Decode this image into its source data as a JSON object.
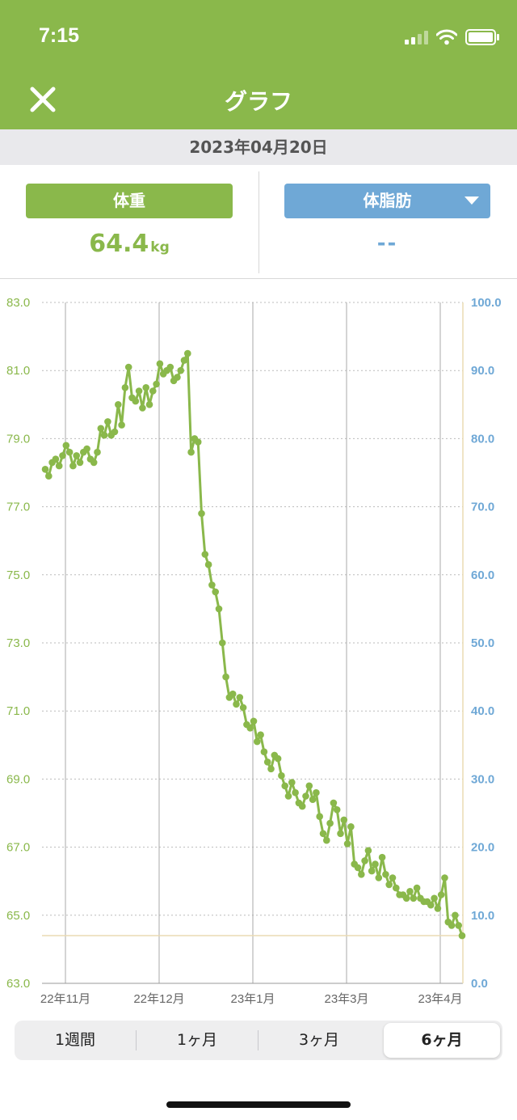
{
  "status_bar": {
    "time": "7:15"
  },
  "nav": {
    "title": "グラフ",
    "close_icon": "close-icon"
  },
  "date": "2023年04月20日",
  "tiles": {
    "weight": {
      "label": "体重",
      "value": "64.4",
      "unit": "kg"
    },
    "body_fat": {
      "label": "体脂肪",
      "value": "--",
      "dropdown_icon": "chevron-down-icon"
    }
  },
  "colors": {
    "accent": "#8ab84b",
    "secondary": "#6fa8d6",
    "target_line": "#eadbb3"
  },
  "chart_data": {
    "type": "line",
    "y_left": {
      "ylim": [
        63.0,
        83.0
      ],
      "ticks": [
        "63.0",
        "65.0",
        "67.0",
        "69.0",
        "71.0",
        "73.0",
        "75.0",
        "77.0",
        "79.0",
        "81.0",
        "83.0"
      ]
    },
    "y_right": {
      "ylim": [
        0.0,
        100.0
      ],
      "ticks": [
        "0.0",
        "10.0",
        "20.0",
        "30.0",
        "40.0",
        "50.0",
        "60.0",
        "70.0",
        "80.0",
        "90.0",
        "100.0"
      ]
    },
    "x_tick_labels": [
      "22年11月",
      "22年12月",
      "23年1月",
      "23年3月",
      "23年4月"
    ],
    "reference_line": 64.4,
    "grid": true,
    "series": [
      {
        "values": [
          78.1,
          77.9,
          78.3,
          78.4,
          78.2,
          78.5,
          78.8,
          78.6,
          78.2,
          78.5,
          78.3,
          78.6,
          78.7,
          78.4,
          78.3,
          78.6,
          79.3,
          79.1,
          79.5,
          79.1,
          79.2,
          80.0,
          79.4,
          80.5,
          81.1,
          80.2,
          80.1,
          80.4,
          79.9,
          80.5,
          80.0,
          80.4,
          80.6,
          81.2,
          80.9,
          81.0,
          81.1,
          80.7,
          80.8,
          81.0,
          81.3,
          81.5,
          78.6,
          79.0,
          78.9,
          76.8,
          75.6,
          75.3,
          74.7,
          74.5,
          74.0,
          73.0,
          72.0,
          71.4,
          71.5,
          71.2,
          71.4,
          71.1,
          70.6,
          70.5,
          70.7,
          70.1,
          70.3,
          69.8,
          69.5,
          69.3,
          69.7,
          69.6,
          69.1,
          68.8,
          68.5,
          68.9,
          68.6,
          68.3,
          68.2,
          68.5,
          68.8,
          68.4,
          68.6,
          67.9,
          67.4,
          67.2,
          67.7,
          68.3,
          68.1,
          67.4,
          67.8,
          67.1,
          67.6,
          66.5,
          66.4,
          66.2,
          66.6,
          66.9,
          66.3,
          66.5,
          66.1,
          66.7,
          66.2,
          65.9,
          66.1,
          65.8,
          65.6,
          65.6,
          65.5,
          65.7,
          65.5,
          65.8,
          65.5,
          65.4,
          65.4,
          65.3,
          65.5,
          65.2,
          65.6,
          66.1,
          64.8,
          64.7,
          65.0,
          64.7,
          64.4
        ]
      }
    ]
  },
  "period_tabs": [
    {
      "label": "1週間",
      "active": false
    },
    {
      "label": "1ヶ月",
      "active": false
    },
    {
      "label": "3ヶ月",
      "active": false
    },
    {
      "label": "6ヶ月",
      "active": true
    }
  ]
}
